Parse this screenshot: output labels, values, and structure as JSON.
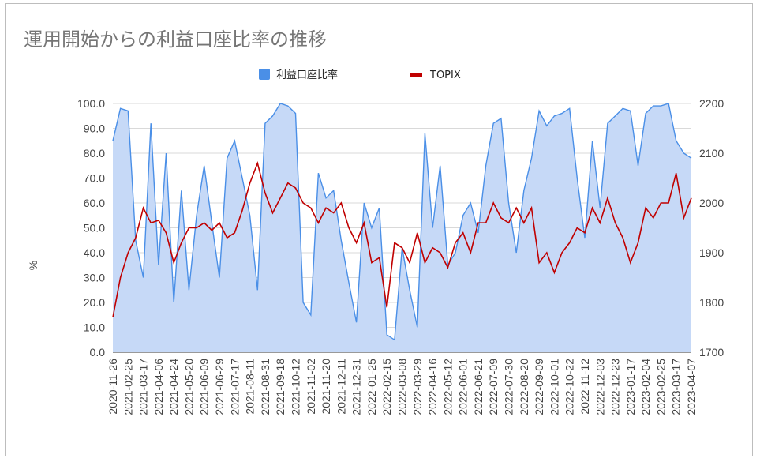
{
  "chart_data": {
    "type": "line",
    "title": "運用開始からの利益口座比率の推移",
    "ylabel": "%",
    "y2label": "",
    "ylim": [
      0,
      100
    ],
    "y2lim": [
      1700,
      2200
    ],
    "yticks": [
      "0.0",
      "10.0",
      "20.0",
      "30.0",
      "40.0",
      "50.0",
      "60.0",
      "70.0",
      "80.0",
      "90.0",
      "100.0"
    ],
    "y2ticks": [
      "1700",
      "1800",
      "1900",
      "2000",
      "2100",
      "2200"
    ],
    "xlabels": [
      "2020-11-26",
      "2021-02-25",
      "2021-03-17",
      "2021-04-06",
      "2021-04-24",
      "2021-05-20",
      "2021-06-09",
      "2021-06-29",
      "2021-07-17",
      "2021-08-11",
      "2021-08-31",
      "2021-09-18",
      "2021-10-12",
      "2021-11-02",
      "2021-11-20",
      "2021-12-11",
      "2021-12-31",
      "2022-01-25",
      "2022-02-15",
      "2022-03-08",
      "2022-03-29",
      "2022-04-16",
      "2022-05-12",
      "2022-06-01",
      "2022-06-21",
      "2022-07-09",
      "2022-07-30",
      "2022-08-20",
      "2022-09-09",
      "2022-10-01",
      "2022-10-22",
      "2022-11-12",
      "2022-12-03",
      "2022-12-23",
      "2023-01-17",
      "2023-02-04",
      "2023-02-25",
      "2023-03-17",
      "2023-04-07"
    ],
    "legend_position": "top",
    "series": [
      {
        "name": "利益口座比率",
        "type": "area",
        "color": "#4a8fe7",
        "fill": "#c6d9f7",
        "axis": "left",
        "x": [
          0,
          0.5,
          1,
          1.5,
          2,
          2.5,
          3,
          3.5,
          4,
          4.5,
          5,
          5.5,
          6,
          6.5,
          7,
          7.5,
          8,
          8.5,
          9,
          9.5,
          10,
          10.5,
          11,
          11.5,
          12,
          12.5,
          13,
          13.5,
          14,
          14.5,
          15,
          15.5,
          16,
          16.5,
          17,
          17.5,
          18,
          18.5,
          19,
          19.5,
          20,
          20.5,
          21,
          21.5,
          22,
          22.5,
          23,
          23.5,
          24,
          24.5,
          25,
          25.5,
          26,
          26.5,
          27,
          27.5,
          28,
          28.5,
          29,
          29.5,
          30,
          30.5,
          31,
          31.5,
          32,
          32.5,
          33,
          33.5,
          34,
          34.5,
          35,
          35.5,
          36,
          36.5,
          37,
          37.5,
          38
        ],
        "values": [
          85,
          98,
          97,
          45,
          30,
          92,
          35,
          80,
          20,
          65,
          25,
          55,
          75,
          52,
          30,
          78,
          85,
          70,
          55,
          25,
          92,
          95,
          100,
          99,
          96,
          20,
          15,
          72,
          62,
          65,
          45,
          28,
          12,
          60,
          50,
          58,
          7,
          5,
          42,
          25,
          10,
          88,
          50,
          75,
          35,
          40,
          55,
          60,
          48,
          75,
          92,
          94,
          60,
          40,
          65,
          78,
          97,
          91,
          95,
          96,
          98,
          70,
          46,
          85,
          58,
          92,
          95,
          98,
          97,
          75,
          96,
          99,
          99,
          100,
          85,
          80,
          78
        ]
      },
      {
        "name": "TOPIX",
        "type": "line",
        "color": "#c00000",
        "axis": "right",
        "x": [
          0,
          0.5,
          1,
          1.5,
          2,
          2.5,
          3,
          3.5,
          4,
          4.5,
          5,
          5.5,
          6,
          6.5,
          7,
          7.5,
          8,
          8.5,
          9,
          9.5,
          10,
          10.5,
          11,
          11.5,
          12,
          12.5,
          13,
          13.5,
          14,
          14.5,
          15,
          15.5,
          16,
          16.5,
          17,
          17.5,
          18,
          18.5,
          19,
          19.5,
          20,
          20.5,
          21,
          21.5,
          22,
          22.5,
          23,
          23.5,
          24,
          24.5,
          25,
          25.5,
          26,
          26.5,
          27,
          27.5,
          28,
          28.5,
          29,
          29.5,
          30,
          30.5,
          31,
          31.5,
          32,
          32.5,
          33,
          33.5,
          34,
          34.5,
          35,
          35.5,
          36,
          36.5,
          37,
          37.5,
          38
        ],
        "values": [
          1770,
          1850,
          1900,
          1930,
          1990,
          1960,
          1965,
          1940,
          1880,
          1920,
          1950,
          1950,
          1960,
          1945,
          1960,
          1930,
          1940,
          1985,
          2040,
          2080,
          2020,
          1980,
          2010,
          2040,
          2030,
          2000,
          1990,
          1960,
          1990,
          1980,
          2000,
          1950,
          1920,
          1960,
          1880,
          1890,
          1790,
          1920,
          1910,
          1880,
          1940,
          1880,
          1910,
          1900,
          1870,
          1920,
          1940,
          1900,
          1960,
          1960,
          2000,
          1970,
          1960,
          1990,
          1960,
          1990,
          1880,
          1900,
          1860,
          1900,
          1920,
          1950,
          1940,
          1990,
          1960,
          2010,
          1960,
          1930,
          1880,
          1920,
          1990,
          1970,
          2000,
          2000,
          2060,
          1970,
          2010
        ]
      }
    ]
  }
}
